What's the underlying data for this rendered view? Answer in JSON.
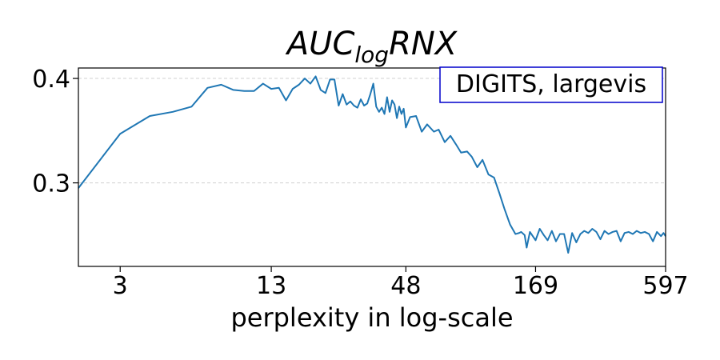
{
  "chart_data": {
    "type": "line",
    "title": {
      "base": "AUC",
      "subscript": "log",
      "suffix": "RNX"
    },
    "xlabel": "perplexity in log-scale",
    "ylabel": "",
    "x_scale": "log",
    "xlim": [
      2,
      597
    ],
    "ylim": [
      0.22,
      0.41
    ],
    "x_ticks": [
      3,
      13,
      48,
      169,
      597
    ],
    "x_tick_labels": [
      "3",
      "13",
      "48",
      "169",
      "597"
    ],
    "y_ticks": [
      0.3,
      0.4
    ],
    "y_tick_labels": [
      "0.3",
      "0.4"
    ],
    "grid": {
      "y": true,
      "x": false
    },
    "legend_box_text": "DIGITS, largevis",
    "legend_box_position": "top-right",
    "colors": {
      "line": "#1f77b4",
      "legend_border": "#0000cc",
      "grid": "#d0d0d0"
    },
    "series": [
      {
        "x": [
          2.0,
          3.0,
          4.0,
          5.0,
          6.0,
          7.0,
          8.0,
          9.0,
          10.0,
          11.0,
          12.0,
          13.0,
          14.0,
          15.0,
          16.0,
          17.0,
          18.0,
          19.0,
          20.0,
          21.0,
          22.0,
          23.0,
          24.0,
          25.0,
          26.0,
          27.0,
          28.0,
          29.0,
          30.0,
          31.0,
          32.0,
          33.0,
          34.0,
          35.0,
          36.0,
          37.0,
          38.0,
          39.0,
          40.0,
          41.0,
          42.0,
          43.0,
          44.0,
          45.0,
          46.0,
          47.0,
          48.0,
          50.0,
          53.0,
          56.0,
          59.0,
          63.0,
          66.0,
          70.0,
          74.0,
          78.0,
          82.0,
          87.0,
          91.0,
          96.0,
          101.0,
          107.0,
          113.0,
          119.0,
          125.0,
          132.0,
          139.0,
          144.0,
          147.0,
          152.0,
          155.0,
          160.0,
          169.0,
          176.0,
          183.0,
          190.0,
          198.0,
          206.0,
          214.0,
          223.0,
          232.0,
          241.0,
          251.0,
          261.0,
          271.0,
          282.0,
          293.0,
          305.0,
          317.0,
          330.0,
          343.0,
          357.0,
          371.0,
          386.0,
          401.0,
          417.0,
          434.0,
          451.0,
          469.0,
          488.0,
          508.0,
          528.0,
          549.0,
          571.0,
          585.0,
          597.0
        ],
        "y": [
          0.295,
          0.347,
          0.364,
          0.368,
          0.373,
          0.391,
          0.394,
          0.389,
          0.388,
          0.388,
          0.395,
          0.39,
          0.391,
          0.379,
          0.39,
          0.394,
          0.4,
          0.395,
          0.402,
          0.389,
          0.386,
          0.399,
          0.399,
          0.374,
          0.385,
          0.375,
          0.378,
          0.374,
          0.372,
          0.38,
          0.374,
          0.376,
          0.385,
          0.395,
          0.373,
          0.368,
          0.372,
          0.366,
          0.382,
          0.368,
          0.379,
          0.375,
          0.362,
          0.373,
          0.366,
          0.371,
          0.353,
          0.363,
          0.364,
          0.349,
          0.356,
          0.349,
          0.351,
          0.339,
          0.345,
          0.337,
          0.329,
          0.33,
          0.325,
          0.315,
          0.322,
          0.308,
          0.305,
          0.29,
          0.275,
          0.26,
          0.251,
          0.252,
          0.253,
          0.25,
          0.238,
          0.253,
          0.245,
          0.256,
          0.25,
          0.245,
          0.254,
          0.244,
          0.251,
          0.251,
          0.233,
          0.252,
          0.243,
          0.251,
          0.254,
          0.252,
          0.256,
          0.253,
          0.246,
          0.254,
          0.251,
          0.253,
          0.254,
          0.244,
          0.252,
          0.253,
          0.251,
          0.254,
          0.252,
          0.253,
          0.251,
          0.244,
          0.253,
          0.249,
          0.252,
          0.249
        ]
      }
    ]
  }
}
